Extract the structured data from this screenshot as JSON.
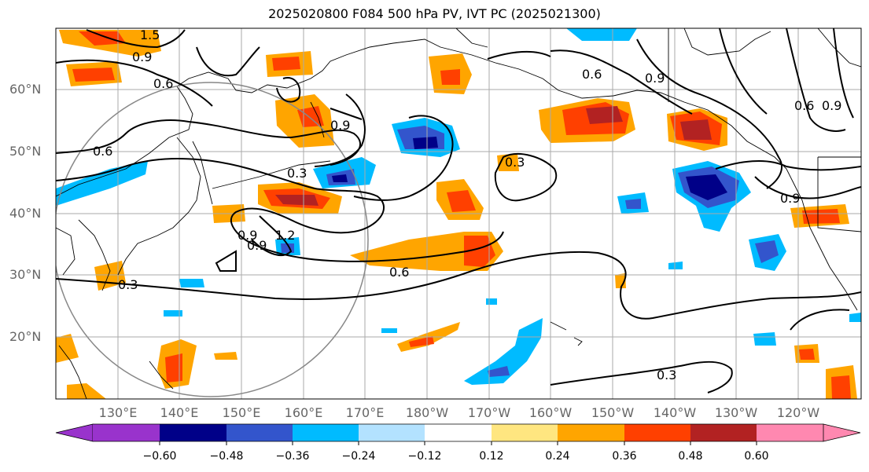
{
  "title": "2025020800 F084 500 hPa PV, IVT PC (2025021300)",
  "lat_labels": [
    "60°N",
    "50°N",
    "40°N",
    "30°N",
    "20°N"
  ],
  "lon_labels": [
    "130°E",
    "140°E",
    "150°E",
    "160°E",
    "170°E",
    "180°W",
    "170°W",
    "160°W",
    "150°W",
    "140°W",
    "130°W",
    "120°W"
  ],
  "colorbar": {
    "ticks": [
      "−0.60",
      "−0.48",
      "−0.36",
      "−0.24",
      "−0.12",
      "0.12",
      "0.24",
      "0.36",
      "0.48",
      "0.60"
    ],
    "colors": [
      "#9933cc",
      "#000088",
      "#3355cc",
      "#00bbff",
      "#b3e2ff",
      "#ffffff",
      "#ffe680",
      "#ffa500",
      "#ff4000",
      "#b22222",
      "#ff88b0"
    ]
  },
  "contour_labels": [
    "1.5",
    "0.9",
    "0.6",
    "0.9",
    "0.6",
    "0.3",
    "0.9",
    "0.9",
    "1.2",
    "0.6",
    "0.3",
    "0.3",
    "0.6",
    "0.9",
    "0.6",
    "0.9",
    "0.9",
    "0.3"
  ]
}
